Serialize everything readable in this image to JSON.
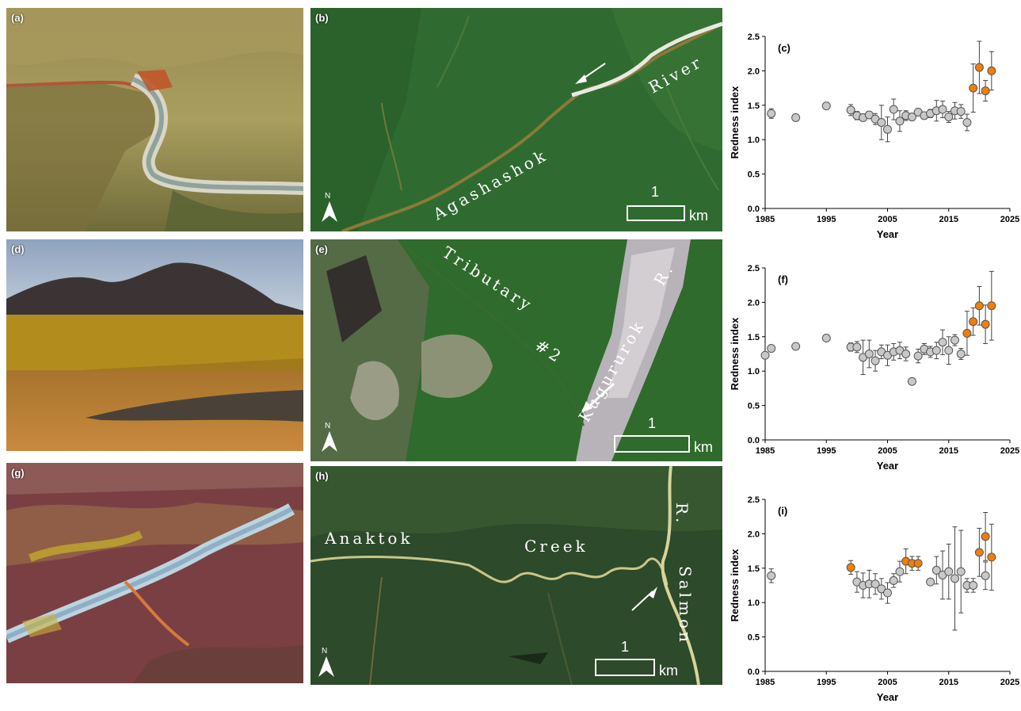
{
  "panels": {
    "a": "(a)",
    "b": "(b)",
    "c": "(c)",
    "d": "(d)",
    "e": "(e)",
    "f": "(f)",
    "g": "(g)",
    "h": "(h)",
    "i": "(i)"
  },
  "maps": {
    "b": {
      "labels": [
        "Agashashok",
        "River"
      ],
      "scale_value": "1",
      "scale_unit": "km",
      "north": "N"
    },
    "e": {
      "labels": [
        "Tributary",
        "#2",
        "Kugururok",
        "R."
      ],
      "scale_value": "1",
      "scale_unit": "km",
      "north": "N"
    },
    "h": {
      "labels": [
        "Anaktok",
        "Creek",
        "Salmon",
        "R."
      ],
      "scale_value": "1",
      "scale_unit": "km",
      "north": "N"
    }
  },
  "colors": {
    "normal": "#c8c8c8",
    "red": "#f07f0a",
    "marker_edge": "#555555"
  },
  "chart_data": [
    {
      "type": "scatter",
      "panel": "(c)",
      "xlabel": "Year",
      "ylabel": "Redness index",
      "xlim": [
        1985,
        2025
      ],
      "ylim": [
        0,
        2.5
      ],
      "xticks": [
        1985,
        1995,
        2005,
        2015,
        2025
      ],
      "yticks": [
        "0.0",
        "0.5",
        "1.0",
        "1.5",
        "2.0",
        "2.5"
      ],
      "series": [
        {
          "class": "normal",
          "points": [
            {
              "x": 1986,
              "y": 1.38,
              "err": 0.07
            },
            {
              "x": 1990,
              "y": 1.32,
              "err": 0
            },
            {
              "x": 1995,
              "y": 1.49,
              "err": 0
            },
            {
              "x": 1999,
              "y": 1.43,
              "err": 0.08
            },
            {
              "x": 2000,
              "y": 1.35,
              "err": 0.06
            },
            {
              "x": 2001,
              "y": 1.32,
              "err": 0.05
            },
            {
              "x": 2002,
              "y": 1.36,
              "err": 0.05
            },
            {
              "x": 2003,
              "y": 1.3,
              "err": 0.08
            },
            {
              "x": 2004,
              "y": 1.25,
              "err": 0.25
            },
            {
              "x": 2005,
              "y": 1.15,
              "err": 0.18
            },
            {
              "x": 2006,
              "y": 1.44,
              "err": 0.15
            },
            {
              "x": 2007,
              "y": 1.27,
              "err": 0.15
            },
            {
              "x": 2008,
              "y": 1.35,
              "err": 0.07
            },
            {
              "x": 2009,
              "y": 1.33,
              "err": 0.05
            },
            {
              "x": 2010,
              "y": 1.4,
              "err": 0.05
            },
            {
              "x": 2011,
              "y": 1.35,
              "err": 0.05
            },
            {
              "x": 2012,
              "y": 1.38,
              "err": 0.06
            },
            {
              "x": 2013,
              "y": 1.42,
              "err": 0.15
            },
            {
              "x": 2014,
              "y": 1.44,
              "err": 0.12
            },
            {
              "x": 2015,
              "y": 1.33,
              "err": 0.08
            },
            {
              "x": 2016,
              "y": 1.42,
              "err": 0.12
            },
            {
              "x": 2017,
              "y": 1.41,
              "err": 0.1
            },
            {
              "x": 2018,
              "y": 1.25,
              "err": 0.12
            }
          ]
        },
        {
          "class": "red",
          "points": [
            {
              "x": 2019,
              "y": 1.75,
              "err": 0.35
            },
            {
              "x": 2020,
              "y": 2.05,
              "err": 0.38
            },
            {
              "x": 2021,
              "y": 1.71,
              "err": 0.15
            },
            {
              "x": 2022,
              "y": 2.0,
              "err": 0.28
            }
          ]
        }
      ]
    },
    {
      "type": "scatter",
      "panel": "(f)",
      "xlabel": "Year",
      "ylabel": "Redness index",
      "xlim": [
        1985,
        2025
      ],
      "ylim": [
        0,
        2.5
      ],
      "xticks": [
        1985,
        1995,
        2005,
        2015,
        2025
      ],
      "yticks": [
        "0.0",
        "0.5",
        "1.0",
        "1.5",
        "2.0",
        "2.5"
      ],
      "series": [
        {
          "class": "normal",
          "points": [
            {
              "x": 1985,
              "y": 1.23,
              "err": 0
            },
            {
              "x": 1986,
              "y": 1.33,
              "err": 0
            },
            {
              "x": 1990,
              "y": 1.36,
              "err": 0
            },
            {
              "x": 1995,
              "y": 1.48,
              "err": 0
            },
            {
              "x": 1999,
              "y": 1.35,
              "err": 0.06
            },
            {
              "x": 2000,
              "y": 1.35,
              "err": 0.08
            },
            {
              "x": 2001,
              "y": 1.2,
              "err": 0.25
            },
            {
              "x": 2002,
              "y": 1.25,
              "err": 0.2
            },
            {
              "x": 2003,
              "y": 1.15,
              "err": 0.15
            },
            {
              "x": 2004,
              "y": 1.28,
              "err": 0.1
            },
            {
              "x": 2005,
              "y": 1.23,
              "err": 0.15
            },
            {
              "x": 2006,
              "y": 1.28,
              "err": 0.12
            },
            {
              "x": 2007,
              "y": 1.3,
              "err": 0.12
            },
            {
              "x": 2008,
              "y": 1.25,
              "err": 0.1
            },
            {
              "x": 2009,
              "y": 0.85,
              "err": 0
            },
            {
              "x": 2010,
              "y": 1.22,
              "err": 0.1
            },
            {
              "x": 2011,
              "y": 1.32,
              "err": 0.08
            },
            {
              "x": 2012,
              "y": 1.28,
              "err": 0.08
            },
            {
              "x": 2013,
              "y": 1.3,
              "err": 0.12
            },
            {
              "x": 2014,
              "y": 1.42,
              "err": 0.18
            },
            {
              "x": 2015,
              "y": 1.3,
              "err": 0.2
            },
            {
              "x": 2016,
              "y": 1.45,
              "err": 0.08
            },
            {
              "x": 2017,
              "y": 1.25,
              "err": 0.08
            }
          ]
        },
        {
          "class": "red",
          "points": [
            {
              "x": 2018,
              "y": 1.55,
              "err": 0.32
            },
            {
              "x": 2019,
              "y": 1.72,
              "err": 0.2
            },
            {
              "x": 2020,
              "y": 1.95,
              "err": 0.28
            },
            {
              "x": 2021,
              "y": 1.68,
              "err": 0.28
            },
            {
              "x": 2022,
              "y": 1.95,
              "err": 0.5
            }
          ]
        }
      ]
    },
    {
      "type": "scatter",
      "panel": "(i)",
      "xlabel": "Year",
      "ylabel": "Redness index",
      "xlim": [
        1985,
        2025
      ],
      "ylim": [
        0,
        2.5
      ],
      "xticks": [
        1985,
        1995,
        2005,
        2015,
        2025
      ],
      "yticks": [
        "0.0",
        "0.5",
        "1.0",
        "1.5",
        "2.0",
        "2.5"
      ],
      "series": [
        {
          "class": "normal",
          "points": [
            {
              "x": 1986,
              "y": 1.39,
              "err": 0.1
            },
            {
              "x": 2000,
              "y": 1.3,
              "err": 0.15
            },
            {
              "x": 2001,
              "y": 1.25,
              "err": 0.18
            },
            {
              "x": 2002,
              "y": 1.27,
              "err": 0.2
            },
            {
              "x": 2003,
              "y": 1.27,
              "err": 0.15
            },
            {
              "x": 2004,
              "y": 1.2,
              "err": 0.15
            },
            {
              "x": 2005,
              "y": 1.14,
              "err": 0.15
            },
            {
              "x": 2006,
              "y": 1.32,
              "err": 0.1
            },
            {
              "x": 2007,
              "y": 1.45,
              "err": 0.15
            },
            {
              "x": 2012,
              "y": 1.3,
              "err": 0
            },
            {
              "x": 2013,
              "y": 1.47,
              "err": 0.2
            },
            {
              "x": 2014,
              "y": 1.4,
              "err": 0.35
            },
            {
              "x": 2015,
              "y": 1.45,
              "err": 0.4
            },
            {
              "x": 2016,
              "y": 1.35,
              "err": 0.75
            },
            {
              "x": 2017,
              "y": 1.45,
              "err": 0.6
            },
            {
              "x": 2018,
              "y": 1.25,
              "err": 0.1
            },
            {
              "x": 2019,
              "y": 1.25,
              "err": 0.1
            },
            {
              "x": 2021,
              "y": 1.39,
              "err": 0.2
            }
          ]
        },
        {
          "class": "red",
          "points": [
            {
              "x": 1999,
              "y": 1.51,
              "err": 0.1
            },
            {
              "x": 2008,
              "y": 1.6,
              "err": 0.18
            },
            {
              "x": 2009,
              "y": 1.57,
              "err": 0.1
            },
            {
              "x": 2010,
              "y": 1.57,
              "err": 0.1
            },
            {
              "x": 2020,
              "y": 1.73,
              "err": 0.35
            },
            {
              "x": 2021,
              "y": 1.96,
              "err": 0.35
            },
            {
              "x": 2022,
              "y": 1.66,
              "err": 0.48
            }
          ]
        }
      ]
    }
  ]
}
